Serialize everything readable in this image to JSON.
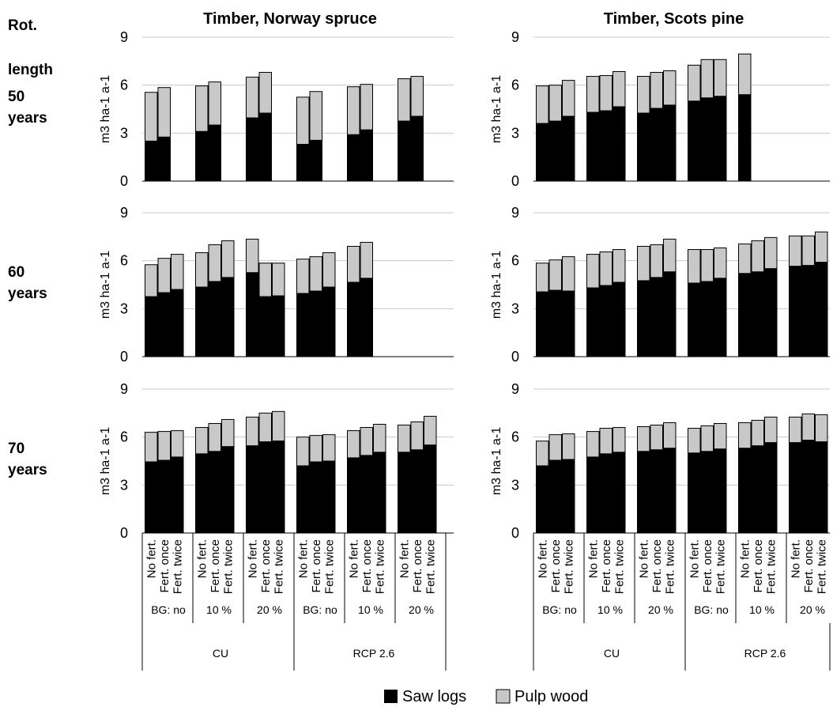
{
  "figure": {
    "row_header": [
      "Rot.",
      "length"
    ],
    "legend": [
      {
        "label": "Saw logs",
        "color": "#000000"
      },
      {
        "label": "Pulp wood",
        "color": "#c8c8c8"
      }
    ]
  },
  "chart_data": [
    {
      "type": "bar",
      "stacked": true,
      "title": "Timber, Norway spruce",
      "row_label": [
        "50",
        "years"
      ],
      "ylabel": "m3 ha-1 a-1",
      "ylim": [
        0,
        9
      ],
      "yticks": [
        0,
        3,
        6,
        9
      ],
      "categories": [
        "No fert.",
        "Fert. once",
        "No fert.",
        "Fert. once",
        "No fert.",
        "Fert. once",
        "No fert.",
        "Fert. once",
        "No fert.",
        "Fert. once",
        "No fert.",
        "Fert. once"
      ],
      "bg_groups": [
        "BG: no",
        "10 %",
        "20 %",
        "BG: no",
        "10 %",
        "20 %"
      ],
      "scenarios": [
        "CU",
        "RCP 2.6"
      ],
      "series": [
        {
          "name": "Saw logs",
          "values": [
            2.5,
            2.75,
            3.1,
            3.5,
            3.95,
            4.25,
            2.3,
            2.55,
            2.9,
            3.2,
            3.75,
            4.05
          ]
        },
        {
          "name": "Pulp wood",
          "values": [
            3.05,
            3.1,
            2.85,
            2.7,
            2.55,
            2.55,
            2.95,
            3.05,
            3.0,
            2.85,
            2.65,
            2.5
          ]
        }
      ]
    },
    {
      "type": "bar",
      "stacked": true,
      "title": "Timber, Scots pine",
      "row_label": [
        "50",
        "years"
      ],
      "ylabel": "m3 ha-1 a-1",
      "ylim": [
        0,
        9
      ],
      "yticks": [
        0,
        3,
        6,
        9
      ],
      "categories": [
        "No fert.",
        "Fert. once",
        "No fert.",
        "Fert. once",
        "No fert.",
        "Fert. once",
        "No fert.",
        "Fert. once",
        "No fert.",
        "Fert. once",
        "No fert.",
        "Fert. once",
        "Fert. twice"
      ],
      "bg_groups": [
        "BG: no",
        "10 %",
        "20 %",
        "BG: no",
        "10 %",
        "20 %"
      ],
      "scenarios": [
        "CU",
        "RCP 2.6"
      ],
      "series": [
        {
          "name": "Saw logs",
          "values": [
            3.6,
            3.75,
            4.05,
            4.3,
            4.4,
            4.65,
            4.25,
            4.55,
            4.75,
            5.0,
            5.2,
            5.3,
            5.4
          ]
        },
        {
          "name": "Pulp wood",
          "values": [
            2.35,
            2.25,
            2.25,
            2.25,
            2.2,
            2.2,
            2.3,
            2.25,
            2.15,
            2.25,
            2.4,
            2.3,
            2.55
          ]
        }
      ]
    },
    {
      "type": "bar",
      "stacked": true,
      "title": "",
      "row_label": [
        "60",
        "years"
      ],
      "ylabel": "m3 ha-1 a-1",
      "ylim": [
        0,
        9
      ],
      "yticks": [
        0,
        3,
        6,
        9
      ],
      "categories": [
        "No fert.",
        "Fert. once",
        "No fert.",
        "Fert. once",
        "No fert.",
        "Fert. once",
        "Fert. twice",
        "No fert.",
        "Fert. once",
        "No fert.",
        "Fert. once",
        "No fert.",
        "Fert. once",
        "Fert. twice"
      ],
      "bg_groups": [
        "BG: no",
        "10 %",
        "20 %",
        "BG: no",
        "10 %",
        "20 %"
      ],
      "scenarios": [
        "CU",
        "RCP 2.6"
      ],
      "series": [
        {
          "name": "Saw logs",
          "values": [
            3.75,
            4.0,
            4.2,
            4.35,
            4.7,
            4.95,
            5.25,
            3.75,
            3.8,
            3.95,
            4.1,
            4.35,
            4.65,
            4.9
          ]
        },
        {
          "name": "Pulp wood",
          "values": [
            2.0,
            2.15,
            2.2,
            2.15,
            2.3,
            2.3,
            2.1,
            2.1,
            2.05,
            2.15,
            2.15,
            2.15,
            2.25,
            2.25
          ]
        }
      ]
    },
    {
      "type": "bar",
      "stacked": true,
      "title": "",
      "row_label": [
        "60",
        "years"
      ],
      "ylabel": "m3 ha-1 a-1",
      "ylim": [
        0,
        9
      ],
      "yticks": [
        0,
        3,
        6,
        9
      ],
      "categories": [
        "No fert.",
        "Fert. once",
        "Fert. twice",
        "No fert.",
        "Fert. once",
        "Fert. twice",
        "No fert.",
        "Fert. once",
        "Fert. twice",
        "No fert.",
        "Fert. once",
        "Fert. twice",
        "No fert.",
        "Fert. once",
        "Fert. twice",
        "No fert.",
        "Fert. once",
        "Fert. twice"
      ],
      "bg_groups": [
        "BG: no",
        "10 %",
        "20 %",
        "BG: no",
        "10 %",
        "20 %"
      ],
      "scenarios": [
        "CU",
        "RCP 2.6"
      ],
      "series": [
        {
          "name": "Saw logs",
          "values": [
            4.05,
            4.15,
            4.1,
            4.3,
            4.45,
            4.65,
            4.75,
            4.95,
            5.3,
            4.6,
            4.7,
            4.9,
            5.2,
            5.3,
            5.5,
            5.65,
            5.7,
            5.9
          ]
        },
        {
          "name": "Pulp wood",
          "values": [
            1.8,
            1.9,
            2.15,
            2.1,
            2.1,
            2.05,
            2.15,
            2.05,
            2.05,
            2.1,
            2.0,
            1.9,
            1.85,
            1.95,
            1.95,
            1.9,
            1.85,
            1.9
          ]
        }
      ]
    },
    {
      "type": "bar",
      "stacked": true,
      "title": "",
      "row_label": [
        "70",
        "years"
      ],
      "ylabel": "m3 ha-1 a-1",
      "ylim": [
        0,
        9
      ],
      "yticks": [
        0,
        3,
        6,
        9
      ],
      "categories": [
        "No fert.",
        "Fert. once",
        "Fert. twice",
        "No fert.",
        "Fert. once",
        "Fert. twice",
        "No fert.",
        "Fert. once",
        "Fert. twice",
        "No fert.",
        "Fert. once",
        "Fert. twice",
        "No fert.",
        "Fert. once",
        "Fert. twice",
        "No fert.",
        "Fert. once",
        "Fert. twice"
      ],
      "bg_groups": [
        "BG: no",
        "10 %",
        "20 %",
        "BG: no",
        "10 %",
        "20 %"
      ],
      "scenarios": [
        "CU",
        "RCP 2.6"
      ],
      "series": [
        {
          "name": "Saw logs",
          "values": [
            4.45,
            4.55,
            4.75,
            4.95,
            5.1,
            5.4,
            5.45,
            5.7,
            5.75,
            4.2,
            4.45,
            4.5,
            4.7,
            4.85,
            5.05,
            5.05,
            5.2,
            5.5
          ]
        },
        {
          "name": "Pulp wood",
          "values": [
            1.85,
            1.8,
            1.65,
            1.65,
            1.75,
            1.7,
            1.8,
            1.8,
            1.85,
            1.8,
            1.65,
            1.65,
            1.7,
            1.75,
            1.75,
            1.7,
            1.75,
            1.8
          ]
        }
      ]
    },
    {
      "type": "bar",
      "stacked": true,
      "title": "",
      "row_label": [
        "70",
        "years"
      ],
      "ylabel": "m3 ha-1 a-1",
      "ylim": [
        0,
        9
      ],
      "yticks": [
        0,
        3,
        6,
        9
      ],
      "categories": [
        "No fert.",
        "Fert. once",
        "Fert. twice",
        "No fert.",
        "Fert. once",
        "Fert. twice",
        "No fert.",
        "Fert. once",
        "Fert. twice",
        "No fert.",
        "Fert. once",
        "Fert. twice",
        "No fert.",
        "Fert. once",
        "Fert. twice",
        "No fert.",
        "Fert. once",
        "Fert. twice"
      ],
      "bg_groups": [
        "BG: no",
        "10 %",
        "20 %",
        "BG: no",
        "10 %",
        "20 %"
      ],
      "scenarios": [
        "CU",
        "RCP 2.6"
      ],
      "series": [
        {
          "name": "Saw logs",
          "values": [
            4.2,
            4.55,
            4.6,
            4.75,
            4.95,
            5.05,
            5.1,
            5.2,
            5.3,
            5.0,
            5.1,
            5.25,
            5.3,
            5.45,
            5.65,
            5.65,
            5.8,
            5.7
          ]
        },
        {
          "name": "Pulp wood",
          "values": [
            1.55,
            1.6,
            1.6,
            1.6,
            1.6,
            1.55,
            1.55,
            1.55,
            1.6,
            1.55,
            1.6,
            1.6,
            1.6,
            1.6,
            1.6,
            1.6,
            1.65,
            1.7
          ]
        }
      ]
    }
  ]
}
